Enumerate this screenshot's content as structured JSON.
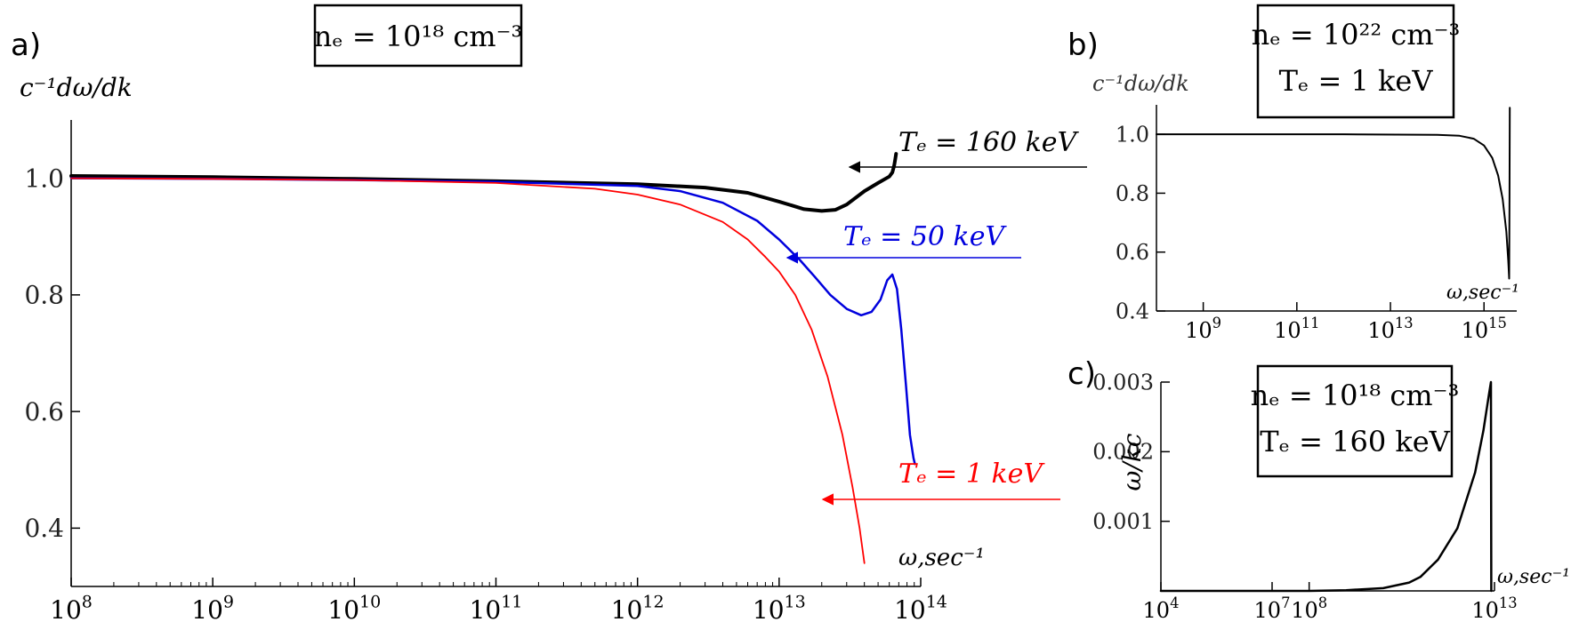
{
  "panel_labels": {
    "a": "a)",
    "b": "b)",
    "c": "c)"
  },
  "chart_data": [
    {
      "panel": "a",
      "type": "line",
      "xscale": "log",
      "xlim": [
        100000000.0,
        100000000000000.0
      ],
      "ylim": [
        0.3,
        1.1
      ],
      "x_ticks": [
        100000000.0,
        1000000000.0,
        10000000000.0,
        100000000000.0,
        1000000000000.0,
        10000000000000.0,
        100000000000000.0
      ],
      "x_tick_labels": [
        {
          "base": "10",
          "exp": "8"
        },
        {
          "base": "10",
          "exp": "9"
        },
        {
          "base": "10",
          "exp": "10"
        },
        {
          "base": "10",
          "exp": "11"
        },
        {
          "base": "10",
          "exp": "12"
        },
        {
          "base": "10",
          "exp": "13"
        },
        {
          "base": "10",
          "exp": "14"
        }
      ],
      "y_ticks": [
        0.4,
        0.6,
        0.8,
        1.0
      ],
      "y_tick_labels": [
        "0.4",
        "0.6",
        "0.8",
        "1.0"
      ],
      "ylabel": "c⁻¹dω/dk",
      "xlabel": "ω,sec⁻¹",
      "box": {
        "lines": [
          "nₑ = 10¹⁸ cm⁻³"
        ]
      },
      "series": [
        {
          "name": "Tₑ = 160 keV",
          "color": "#000000",
          "width": 4,
          "x": [
            100000000.0,
            1000000000.0,
            10000000000.0,
            100000000000.0,
            1000000000000.0,
            3000000000000.0,
            6000000000000.0,
            10000000000000.0,
            15000000000000.0,
            20000000000000.0,
            25000000000000.0,
            30000000000000.0,
            40000000000000.0,
            50000000000000.0,
            60000000000000.0,
            63000000000000.0,
            65000000000000.0,
            66000000000000.0,
            67000000000000.0
          ],
          "y": [
            1.004,
            1.002,
            0.999,
            0.995,
            0.99,
            0.984,
            0.975,
            0.96,
            0.947,
            0.944,
            0.946,
            0.955,
            0.978,
            0.992,
            1.003,
            1.01,
            1.022,
            1.032,
            1.042
          ]
        },
        {
          "name": "Tₑ = 50 keV",
          "color": "#0000dd",
          "width": 2.5,
          "x": [
            100000000.0,
            1000000000.0,
            10000000000.0,
            100000000000.0,
            1000000000000.0,
            2000000000000.0,
            4000000000000.0,
            7000000000000.0,
            10000000000000.0,
            14000000000000.0,
            18000000000000.0,
            23000000000000.0,
            30000000000000.0,
            38000000000000.0,
            45000000000000.0,
            52000000000000.0,
            58000000000000.0,
            63000000000000.0,
            68000000000000.0,
            73000000000000.0,
            79000000000000.0,
            84000000000000.0,
            89000000000000.0,
            91000000000000.0
          ],
          "y": [
            1.0,
            0.999,
            0.997,
            0.994,
            0.987,
            0.978,
            0.958,
            0.927,
            0.895,
            0.86,
            0.83,
            0.8,
            0.776,
            0.765,
            0.771,
            0.792,
            0.825,
            0.835,
            0.81,
            0.74,
            0.64,
            0.56,
            0.52,
            0.51
          ]
        },
        {
          "name": "Tₑ = 1 keV",
          "color": "#ff0000",
          "width": 1.8,
          "x": [
            100000000.0,
            1000000000.0,
            10000000000.0,
            100000000000.0,
            500000000000.0,
            1000000000000.0,
            2000000000000.0,
            4000000000000.0,
            6000000000000.0,
            8000000000000.0,
            10000000000000.0,
            13000000000000.0,
            17000000000000.0,
            22000000000000.0,
            28000000000000.0,
            33000000000000.0,
            37000000000000.0,
            40000000000000.0
          ],
          "y": [
            1.0,
            0.999,
            0.997,
            0.992,
            0.982,
            0.972,
            0.955,
            0.925,
            0.895,
            0.865,
            0.84,
            0.8,
            0.74,
            0.66,
            0.56,
            0.47,
            0.4,
            0.34
          ]
        }
      ],
      "annotations": [
        {
          "label": "Tₑ = 160 keV",
          "color": "#000000"
        },
        {
          "label": "Tₑ = 50 keV",
          "color": "#0000dd"
        },
        {
          "label": "Tₑ = 1 keV",
          "color": "#ff0000"
        }
      ]
    },
    {
      "panel": "b",
      "type": "line",
      "xscale": "log",
      "xlim": [
        100000000.0,
        5000000000000000.0
      ],
      "ylim": [
        0.4,
        1.1
      ],
      "x_ticks": [
        1000000000.0,
        100000000000.0,
        10000000000000.0,
        1000000000000000.0
      ],
      "x_tick_labels": [
        {
          "base": "10",
          "exp": "9"
        },
        {
          "base": "10",
          "exp": "11"
        },
        {
          "base": "10",
          "exp": "13"
        },
        {
          "base": "10",
          "exp": "15"
        }
      ],
      "y_ticks": [
        0.4,
        0.6,
        0.8,
        1.0
      ],
      "y_tick_labels": [
        "0.4",
        "0.6",
        "0.8",
        "1.0"
      ],
      "ylabel": "c⁻¹dω/dk",
      "xlabel": "ω,sec⁻¹",
      "box": {
        "lines": [
          "nₑ = 10²² cm⁻³",
          "Tₑ = 1 keV"
        ]
      },
      "series": [
        {
          "name": "",
          "color": "#000000",
          "width": 2,
          "x": [
            100000000.0,
            10000000000.0,
            1000000000000.0,
            100000000000000.0,
            300000000000000.0,
            600000000000000.0,
            1000000000000000.0,
            1500000000000000.0,
            2000000000000000.0,
            2500000000000000.0,
            3000000000000000.0,
            3300000000000000.0,
            3450000000000000.0,
            3500000000000000.0,
            3550000000000000.0
          ],
          "y": [
            1.0,
            1.0,
            1.0,
            0.998,
            0.995,
            0.985,
            0.962,
            0.92,
            0.86,
            0.78,
            0.67,
            0.57,
            0.51,
            0.8,
            1.09
          ]
        }
      ]
    },
    {
      "panel": "c",
      "type": "line",
      "xscale": "log",
      "xlim": [
        10000.0,
        10000000000000.0
      ],
      "ylim": [
        0,
        0.003
      ],
      "x_ticks": [
        10000.0,
        10000000.0,
        100000000.0,
        10000000000000.0
      ],
      "x_tick_labels": [
        {
          "base": "10",
          "exp": "4"
        },
        {
          "base": "10",
          "exp": "7"
        },
        {
          "base": "10",
          "exp": "8"
        },
        {
          "base": "10",
          "exp": "13"
        }
      ],
      "y_ticks": [
        0.001,
        0.002,
        0.003
      ],
      "y_tick_labels": [
        "0.001",
        "0.002",
        "0.003"
      ],
      "ylabel": "ω/kc",
      "xlabel": "ω,sec⁻¹",
      "box": {
        "lines": [
          "nₑ = 10¹⁸ cm⁻³",
          "Tₑ = 160 keV"
        ]
      },
      "series": [
        {
          "name": "",
          "color": "#000000",
          "width": 2.5,
          "x": [
            10000.0,
            1000000.0,
            100000000.0,
            1000000000.0,
            10000000000.0,
            50000000000.0,
            100000000000.0,
            300000000000.0,
            1000000000000.0,
            3000000000000.0,
            5000000000000.0,
            7000000000000.0,
            8000000000000.0,
            8200000000000.0
          ],
          "y": [
            0.0,
            0.0,
            0.0,
            1e-05,
            4e-05,
            0.00012,
            0.0002,
            0.00045,
            0.0009,
            0.0017,
            0.0023,
            0.0028,
            0.003,
            0.0
          ]
        }
      ]
    }
  ]
}
